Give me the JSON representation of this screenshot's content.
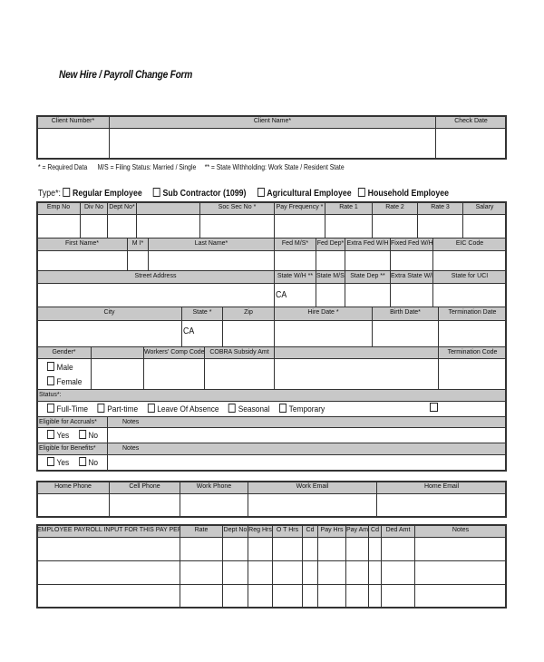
{
  "title": "New Hire / Payroll Change Form",
  "legend_note": {
    "required": "* = Required Data",
    "ms": "M/S = Filing Status: Married / Single",
    "state": "** = State Withholding: Work State / Resident State"
  },
  "type": {
    "label": "Type*:",
    "options": [
      "Regular Employee",
      "Sub Contractor (1099)",
      "Agricultural  Employee",
      "Household Employee"
    ]
  },
  "client": {
    "headers": [
      "Client Number*",
      "Client Name*",
      "Check Date"
    ]
  },
  "employee": {
    "row1": [
      "Emp No",
      "Div No",
      "Dept No*",
      "",
      "Soc Sec No *",
      "Pay Frequency *",
      "Rate 1",
      "Rate 2",
      "Rate 3",
      "Salary"
    ],
    "row2": [
      "First Name*",
      "M I*",
      "Last Name*",
      "Fed M/S*",
      "Fed Dep*",
      "Extra Fed W/H",
      "Fixed Fed W/H",
      "EIC Code"
    ],
    "row3": [
      "Street Address",
      "State  W/H **",
      "State M/S **",
      "State Dep **",
      "Extra State W/H **",
      "State for UCI"
    ],
    "row3_values": {
      "state_wh": "CA"
    },
    "row4": [
      "City",
      "State *",
      "Zip",
      "Hire Date *",
      "Birth Date*",
      "Termination Date"
    ],
    "row4_values": {
      "state": "CA"
    },
    "row5": [
      "Gender*",
      "",
      "Workers' Comp Code",
      "COBRA Subsidy Amt",
      "",
      "Termination Code"
    ],
    "gender_options": [
      "Male",
      "Female"
    ],
    "status_label": "Status*:",
    "status_options": [
      "Full-Time",
      "Part-time",
      "Leave Of Absence",
      "Seasonal",
      "Temporary"
    ],
    "accruals_label": "Eligible for Accruals*",
    "benefits_label": "Eligible for Benefits*",
    "notes_label": "Notes",
    "yes_no": [
      "Yes",
      "No"
    ]
  },
  "contact": {
    "headers": [
      "Home Phone",
      "Cell Phone",
      "Work Phone",
      "Work Email",
      "Home Email"
    ]
  },
  "payroll": {
    "headers": [
      "EMPLOYEE PAYROLL INPUT FOR THIS PAY PERIOD:",
      "Rate",
      "Dept No",
      "Reg Hrs",
      "O T Hrs",
      "Cd",
      "Pay Hrs",
      "Pay Amt",
      "Cd",
      "Ded Amt",
      "Notes"
    ]
  }
}
